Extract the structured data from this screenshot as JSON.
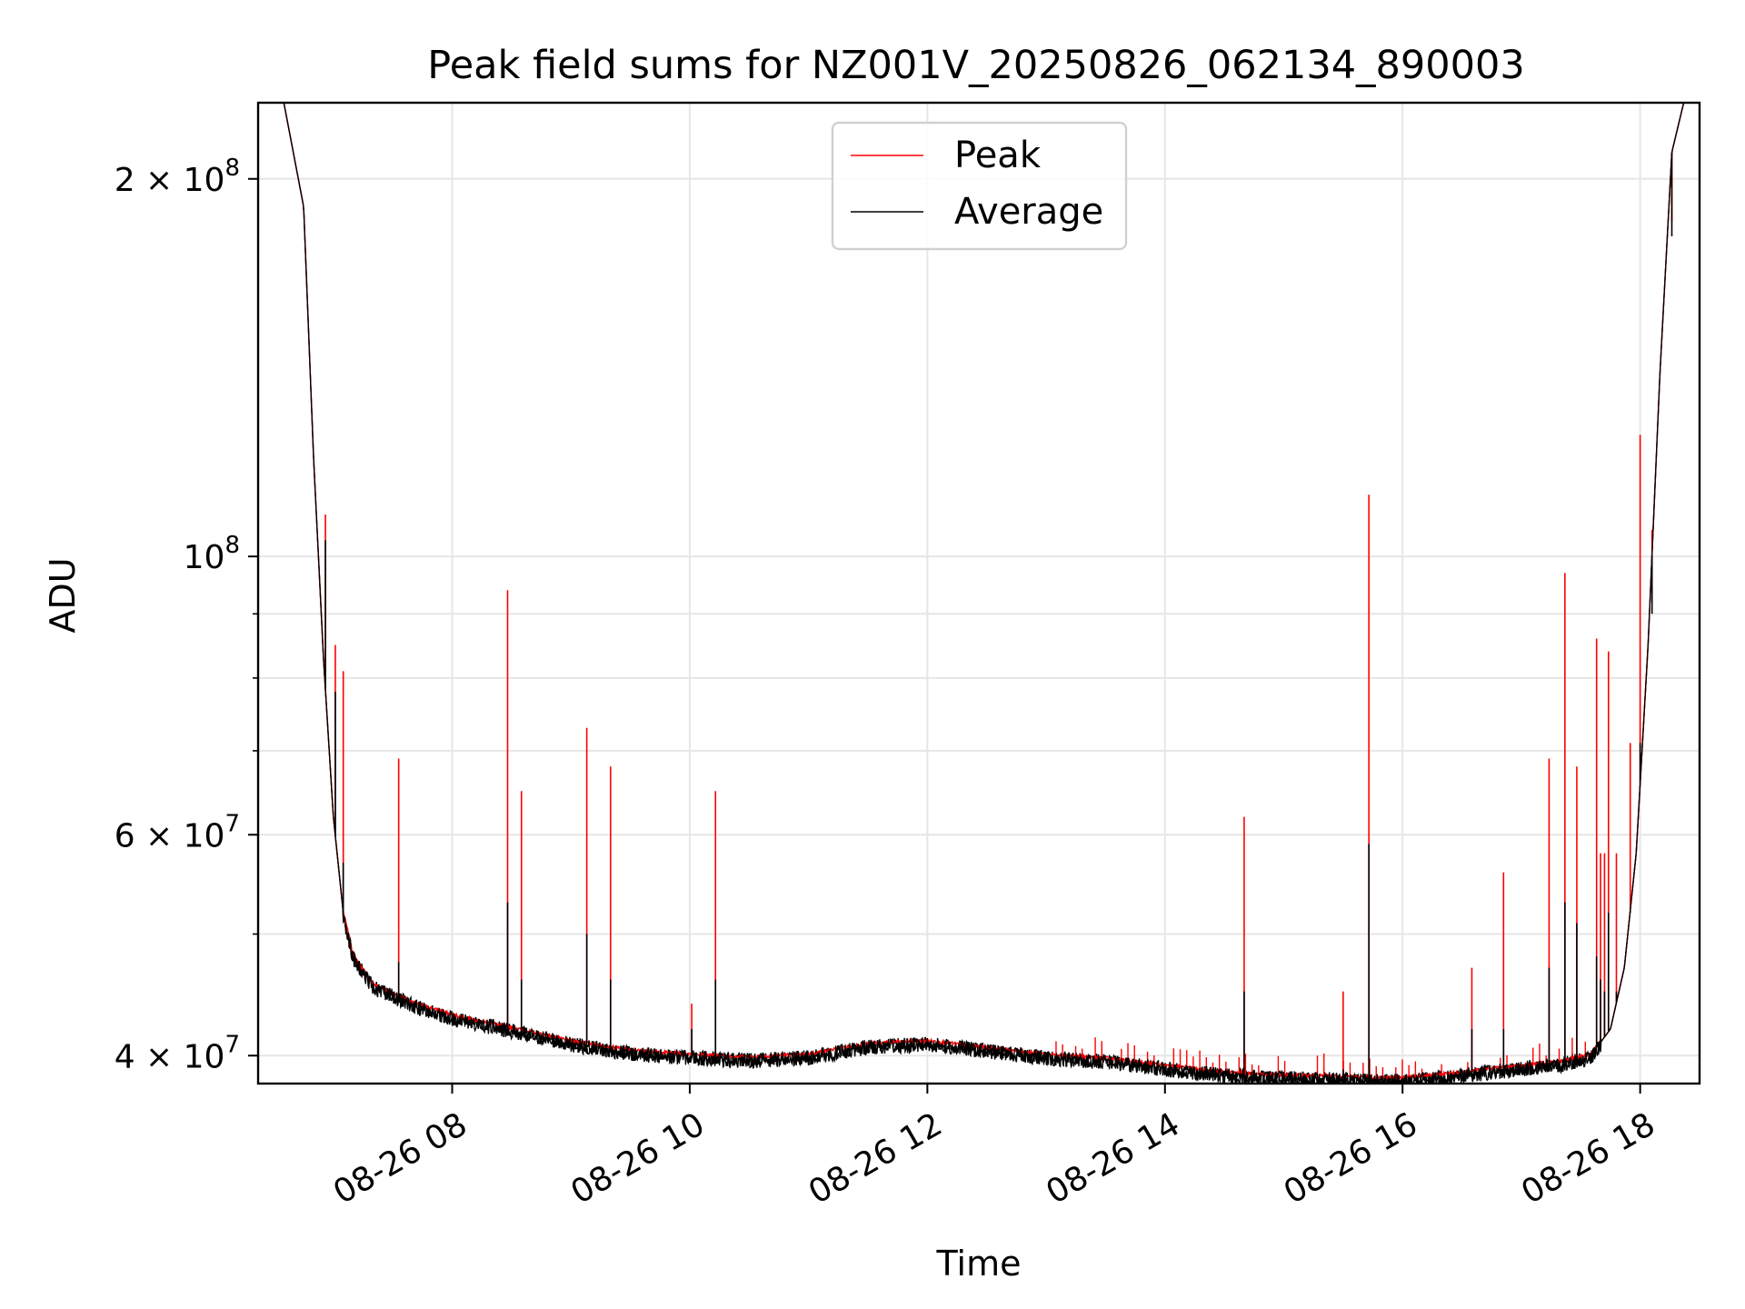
{
  "chart_data": {
    "type": "line",
    "title": "Peak field sums for NZ001V_20250826_062134_890003",
    "xlabel": "Time",
    "ylabel": "ADU",
    "yscale": "log",
    "grid": true,
    "legend_position": "top-center",
    "xlim": [
      "08-26 06:22",
      "08-26 18:30"
    ],
    "ylim": [
      38000000,
      230000000
    ],
    "x_ticks": [
      "08-26 08",
      "08-26 10",
      "08-26 12",
      "08-26 14",
      "08-26 16",
      "08-26 18"
    ],
    "y_ticks": [
      {
        "value": 40000000,
        "base": "4",
        "sup": "7",
        "mult": true
      },
      {
        "value": 60000000,
        "base": "6",
        "sup": "7",
        "mult": true
      },
      {
        "value": 100000000,
        "base": "10",
        "sup": "8",
        "mult": false
      },
      {
        "value": 200000000,
        "base": "2",
        "sup": "8",
        "mult": true
      }
    ],
    "y_minor_ticks": [
      50000000,
      70000000,
      80000000,
      90000000
    ],
    "series": [
      {
        "name": "Peak",
        "color": "#ff0000"
      },
      {
        "name": "Average",
        "color": "#000000"
      }
    ],
    "baseline_points": [
      {
        "x": "08-26 06:22",
        "y": 230000000
      },
      {
        "x": "08-26 06:35",
        "y": 230000000
      },
      {
        "x": "08-26 06:45",
        "y": 190000000
      },
      {
        "x": "08-26 06:50",
        "y": 120000000
      },
      {
        "x": "08-26 06:55",
        "y": 83000000
      },
      {
        "x": "08-26 07:00",
        "y": 62000000
      },
      {
        "x": "08-26 07:05",
        "y": 52000000
      },
      {
        "x": "08-26 07:10",
        "y": 48000000
      },
      {
        "x": "08-26 07:20",
        "y": 45500000
      },
      {
        "x": "08-26 07:40",
        "y": 44000000
      },
      {
        "x": "08-26 08:00",
        "y": 43000000
      },
      {
        "x": "08-26 08:30",
        "y": 42000000
      },
      {
        "x": "08-26 09:00",
        "y": 41000000
      },
      {
        "x": "08-26 09:30",
        "y": 40300000
      },
      {
        "x": "08-26 10:00",
        "y": 40000000
      },
      {
        "x": "08-26 10:30",
        "y": 39800000
      },
      {
        "x": "08-26 11:00",
        "y": 40000000
      },
      {
        "x": "08-26 11:30",
        "y": 40800000
      },
      {
        "x": "08-26 12:00",
        "y": 41000000
      },
      {
        "x": "08-26 12:30",
        "y": 40500000
      },
      {
        "x": "08-26 13:00",
        "y": 40000000
      },
      {
        "x": "08-26 13:30",
        "y": 39700000
      },
      {
        "x": "08-26 14:00",
        "y": 39200000
      },
      {
        "x": "08-26 14:30",
        "y": 38700000
      },
      {
        "x": "08-26 15:00",
        "y": 38500000
      },
      {
        "x": "08-26 15:30",
        "y": 38400000
      },
      {
        "x": "08-26 16:00",
        "y": 38300000
      },
      {
        "x": "08-26 16:30",
        "y": 38700000
      },
      {
        "x": "08-26 17:00",
        "y": 39200000
      },
      {
        "x": "08-26 17:20",
        "y": 39500000
      },
      {
        "x": "08-26 17:35",
        "y": 40000000
      },
      {
        "x": "08-26 17:45",
        "y": 42000000
      },
      {
        "x": "08-26 17:52",
        "y": 47000000
      },
      {
        "x": "08-26 17:58",
        "y": 58000000
      },
      {
        "x": "08-26 18:04",
        "y": 85000000
      },
      {
        "x": "08-26 18:10",
        "y": 140000000
      },
      {
        "x": "08-26 18:16",
        "y": 210000000
      },
      {
        "x": "08-26 18:22",
        "y": 230000000
      },
      {
        "x": "08-26 18:30",
        "y": 230000000
      }
    ],
    "spikes": [
      {
        "x": "08-26 06:56",
        "peak": 108000000,
        "avg": 103000000
      },
      {
        "x": "08-26 07:01",
        "peak": 85000000,
        "avg": 78000000
      },
      {
        "x": "08-26 07:05",
        "peak": 81000000,
        "avg": 57000000
      },
      {
        "x": "08-26 07:33",
        "peak": 69000000,
        "avg": 47500000
      },
      {
        "x": "08-26 08:28",
        "peak": 94000000,
        "avg": 53000000
      },
      {
        "x": "08-26 08:35",
        "peak": 65000000,
        "avg": 46000000
      },
      {
        "x": "08-26 09:08",
        "peak": 73000000,
        "avg": 50000000
      },
      {
        "x": "08-26 09:20",
        "peak": 68000000,
        "avg": 46000000
      },
      {
        "x": "08-26 10:01",
        "peak": 44000000,
        "avg": 42000000
      },
      {
        "x": "08-26 10:13",
        "peak": 65000000,
        "avg": 46000000
      },
      {
        "x": "08-26 14:40",
        "peak": 62000000,
        "avg": 45000000
      },
      {
        "x": "08-26 15:30",
        "peak": 45000000,
        "avg": 39000000
      },
      {
        "x": "08-26 15:43",
        "peak": 112000000,
        "avg": 59000000
      },
      {
        "x": "08-26 16:35",
        "peak": 47000000,
        "avg": 42000000
      },
      {
        "x": "08-26 16:51",
        "peak": 56000000,
        "avg": 42000000
      },
      {
        "x": "08-26 17:14",
        "peak": 69000000,
        "avg": 47000000
      },
      {
        "x": "08-26 17:22",
        "peak": 97000000,
        "avg": 53000000
      },
      {
        "x": "08-26 17:28",
        "peak": 68000000,
        "avg": 51000000
      },
      {
        "x": "08-26 17:38",
        "peak": 86000000,
        "avg": 48000000
      },
      {
        "x": "08-26 17:40",
        "peak": 58000000,
        "avg": 46000000
      },
      {
        "x": "08-26 17:42",
        "peak": 58000000,
        "avg": 45000000
      },
      {
        "x": "08-26 17:44",
        "peak": 84000000,
        "avg": 52000000
      },
      {
        "x": "08-26 17:48",
        "peak": 58000000,
        "avg": 45000000
      },
      {
        "x": "08-26 17:55",
        "peak": 71000000,
        "avg": 52000000
      },
      {
        "x": "08-26 18:00",
        "peak": 125000000,
        "avg": 71000000
      },
      {
        "x": "08-26 18:06",
        "peak": 105000000,
        "avg": 90000000
      },
      {
        "x": "08-26 18:16",
        "peak": 185000000,
        "avg": 180000000
      }
    ]
  }
}
